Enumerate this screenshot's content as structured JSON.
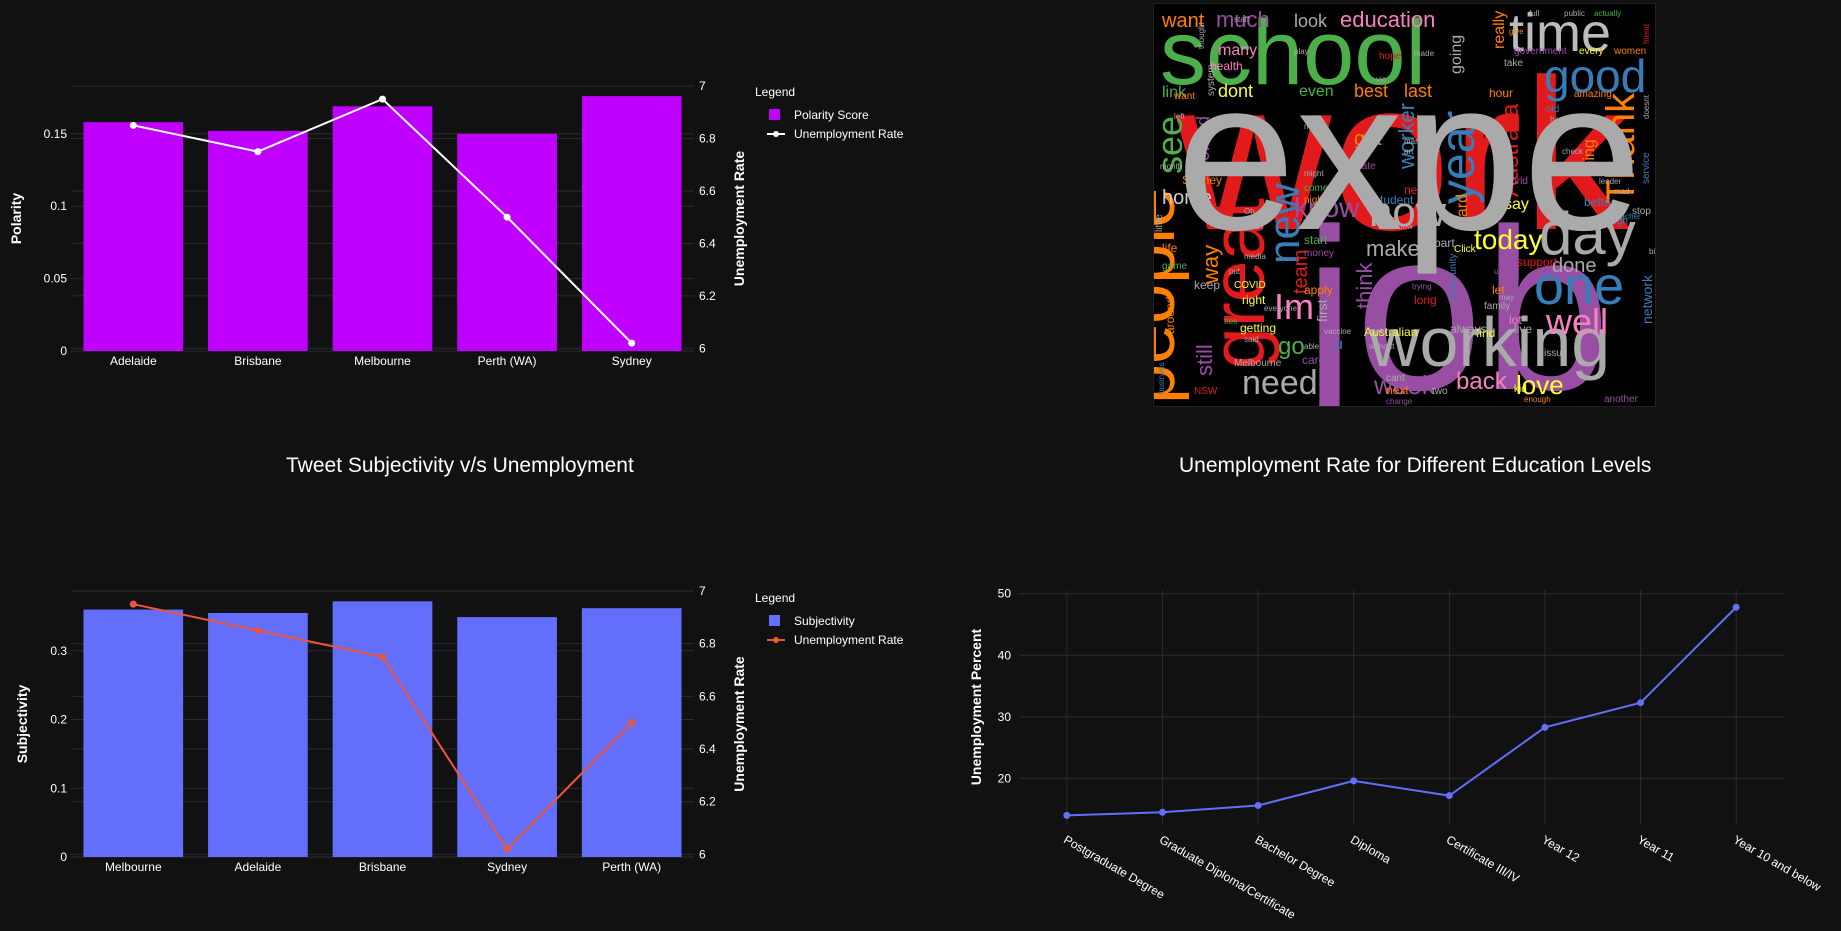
{
  "colors": {
    "background": "#111111",
    "polarity_bar": "#bf00ff",
    "polarity_line": "#ffffff",
    "subjectivity_bar": "#636efa",
    "subjectivity_line": "#ef553b",
    "education_line": "#636efa",
    "grid": "#2a2a33"
  },
  "chart_data": [
    {
      "type": "bar",
      "title": "",
      "categories": [
        "Adelaide",
        "Brisbane",
        "Melbourne",
        "Perth (WA)",
        "Sydney"
      ],
      "series": [
        {
          "name": "Polarity Score",
          "type": "bar",
          "axis": "left",
          "values": [
            0.158,
            0.152,
            0.169,
            0.15,
            0.176
          ]
        },
        {
          "name": "Unemployment Rate",
          "type": "line",
          "axis": "right",
          "values": [
            6.85,
            6.75,
            6.95,
            6.5,
            6.02
          ]
        }
      ],
      "ylabel": "Polarity",
      "y2label": "Unemployment Rate",
      "ylim": [
        0,
        0.183
      ],
      "y2lim": [
        5.99,
        7.0
      ],
      "yticks": [
        "0",
        "0.05",
        "0.1",
        "0.15"
      ],
      "y2ticks": [
        "6",
        "6.2",
        "6.4",
        "6.6",
        "6.8",
        "7"
      ],
      "legend_title": "Legend",
      "legend_position": "top-right"
    },
    {
      "type": "bar",
      "title": "Tweet Subjectivity v/s Unemployment",
      "categories": [
        "Melbourne",
        "Adelaide",
        "Brisbane",
        "Sydney",
        "Perth (WA)"
      ],
      "series": [
        {
          "name": "Subjectivity",
          "type": "bar",
          "axis": "left",
          "values": [
            0.36,
            0.355,
            0.372,
            0.349,
            0.362
          ]
        },
        {
          "name": "Unemployment Rate",
          "type": "line",
          "axis": "right",
          "values": [
            6.95,
            6.85,
            6.75,
            6.02,
            6.5
          ]
        }
      ],
      "ylabel": "Subjectivity",
      "y2label": "Unemployment Rate",
      "ylim": [
        0,
        0.387
      ],
      "y2lim": [
        5.99,
        7.0
      ],
      "yticks": [
        "0",
        "0.1",
        "0.2",
        "0.3"
      ],
      "y2ticks": [
        "6",
        "6.2",
        "6.4",
        "6.6",
        "6.8",
        "7"
      ],
      "legend_title": "Legend",
      "legend_position": "top-right"
    },
    {
      "type": "line",
      "title": "Unemployment Rate for Different Education Levels",
      "categories": [
        "Postgraduate Degree",
        "Graduate Diploma/Certificate",
        "Bachelor Degree",
        "Diploma",
        "Certificate III/IV",
        "Year 12",
        "Year 11",
        "Year 10 and below"
      ],
      "series": [
        {
          "name": "",
          "values": [
            14.0,
            14.5,
            15.6,
            19.6,
            17.2,
            28.3,
            32.3,
            47.8
          ]
        }
      ],
      "xlabel": "",
      "ylabel": "Unemployment Percent",
      "ylim": [
        12.6,
        50.6
      ],
      "yticks": [
        "20",
        "30",
        "40",
        "50"
      ],
      "grid": true
    }
  ],
  "wordcloud": {
    "words": [
      {
        "text": "work",
        "color": "#e31a1c"
      },
      {
        "text": "school",
        "color": "#4daf4a"
      },
      {
        "text": "job",
        "color": "#984ea3"
      },
      {
        "text": "time",
        "color": "#bbbbbb"
      },
      {
        "text": "people",
        "color": "#ff7f00"
      },
      {
        "text": "working",
        "color": "#aaaaaa"
      },
      {
        "text": "great",
        "color": "#e31a1c"
      },
      {
        "text": "day",
        "color": "#aaaaaa"
      },
      {
        "text": "one",
        "color": "#377eb8"
      },
      {
        "text": "good",
        "color": "#377eb8"
      },
      {
        "text": "year",
        "color": "#377eb8"
      },
      {
        "text": "Thank",
        "color": "#ff7f00"
      },
      {
        "text": "new",
        "color": "#377eb8"
      },
      {
        "text": "now",
        "color": "#aaaaaa"
      },
      {
        "text": "well",
        "color": "#f781bf"
      },
      {
        "text": "need",
        "color": "#aaaaaa"
      },
      {
        "text": "see",
        "color": "#4daf4a"
      },
      {
        "text": "know",
        "color": "#984ea3"
      },
      {
        "text": "Im",
        "color": "#f781bf"
      },
      {
        "text": "education",
        "color": "#f781bf"
      },
      {
        "text": "want",
        "color": "#ff7f00"
      },
      {
        "text": "much",
        "color": "#984ea3"
      },
      {
        "text": "today",
        "color": "#ffff33"
      },
      {
        "text": "back",
        "color": "#f781bf"
      },
      {
        "text": "love",
        "color": "#ffff33"
      },
      {
        "text": "week",
        "color": "#984ea3"
      },
      {
        "text": "home",
        "color": "#cccccc"
      },
      {
        "text": "still",
        "color": "#984ea3"
      },
      {
        "text": "Australia",
        "color": "#e31a1c"
      },
      {
        "text": "make",
        "color": "#aaaaaa"
      },
      {
        "text": "go",
        "color": "#4daf4a"
      },
      {
        "text": "many",
        "color": "#f781bf"
      },
      {
        "text": "look",
        "color": "#aaaaaa"
      },
      {
        "text": "done",
        "color": "#aaaaaa"
      },
      {
        "text": "way",
        "color": "#ff7f00"
      },
      {
        "text": "think",
        "color": "#984ea3"
      },
      {
        "text": "team",
        "color": "#e31a1c"
      },
      {
        "text": "worker",
        "color": "#377eb8"
      },
      {
        "text": "dont",
        "color": "#ffff33"
      },
      {
        "text": "link",
        "color": "#4daf4a"
      },
      {
        "text": "got",
        "color": "#ff7f00"
      },
      {
        "text": "best",
        "color": "#ff7f00"
      },
      {
        "text": "even",
        "color": "#4daf4a"
      },
      {
        "text": "last",
        "color": "#ff7f00"
      },
      {
        "text": "say",
        "color": "#ffff33"
      },
      {
        "text": "hard",
        "color": "#ff7f00"
      },
      {
        "text": "worked",
        "color": "#984ea3"
      },
      {
        "text": "going",
        "color": "#aaaaaa"
      },
      {
        "text": "really",
        "color": "#ff7f00"
      },
      {
        "text": "network",
        "color": "#377eb8"
      },
      {
        "text": "thing",
        "color": "#ff7f00"
      },
      {
        "text": "first",
        "color": "#aaaaaa"
      },
      {
        "text": "health",
        "color": "#f781bf"
      },
      {
        "text": "never",
        "color": "#e31a1c"
      },
      {
        "text": "student",
        "color": "#377eb8"
      },
      {
        "text": "Australian",
        "color": "#ffff33"
      },
      {
        "text": "around",
        "color": "#ff7f00"
      },
      {
        "text": "lot",
        "color": "#f781bf"
      },
      {
        "text": "life",
        "color": "#ff7f00"
      },
      {
        "text": "better",
        "color": "#377eb8"
      },
      {
        "text": "support",
        "color": "#e31a1c"
      },
      {
        "text": "find",
        "color": "#ffff33"
      },
      {
        "text": "right",
        "color": "#ffff33"
      },
      {
        "text": "apply",
        "color": "#ff7f00"
      },
      {
        "text": "getting",
        "color": "#ffff33"
      },
      {
        "text": "care",
        "color": "#984ea3"
      },
      {
        "text": "feel",
        "color": "#aaaaaa"
      },
      {
        "text": "let",
        "color": "#ff7f00"
      },
      {
        "text": "long",
        "color": "#e31a1c"
      },
      {
        "text": "community",
        "color": "#377eb8"
      },
      {
        "text": "Sydney",
        "color": "#ff7f00"
      },
      {
        "text": "system",
        "color": "#aaaaaa"
      },
      {
        "text": "government",
        "color": "#984ea3"
      },
      {
        "text": "every",
        "color": "#ffff33"
      },
      {
        "text": "women",
        "color": "#ff7f00"
      },
      {
        "text": "hope",
        "color": "#e31a1c"
      },
      {
        "text": "start",
        "color": "#4daf4a"
      },
      {
        "text": "money",
        "color": "#984ea3"
      },
      {
        "text": "night",
        "color": "#ff7f00"
      },
      {
        "text": "come",
        "color": "#4daf4a"
      },
      {
        "text": "part",
        "color": "#aaaaaa"
      },
      {
        "text": "always",
        "color": "#aaaaaa"
      },
      {
        "text": "live",
        "color": "#aaaaaa"
      },
      {
        "text": "stop",
        "color": "#aaaaaa"
      },
      {
        "text": "kid",
        "color": "#ffff33"
      },
      {
        "text": "two",
        "color": "#aaaaaa"
      },
      {
        "text": "cant",
        "color": "#aaaaaa"
      },
      {
        "text": "next",
        "color": "#ff7f00"
      },
      {
        "text": "change",
        "color": "#984ea3"
      },
      {
        "text": "enough",
        "color": "#ff7f00"
      },
      {
        "text": "another",
        "color": "#984ea3"
      },
      {
        "text": "keep",
        "color": "#aaaaaa"
      },
      {
        "text": "COVID",
        "color": "#ffff33"
      },
      {
        "text": "game",
        "color": "#4daf4a"
      },
      {
        "text": "state",
        "color": "#984ea3"
      },
      {
        "text": "bio",
        "color": "#984ea3"
      },
      {
        "text": "hour",
        "color": "#ff7f00"
      },
      {
        "text": "amazing",
        "color": "#ff7f00"
      },
      {
        "text": "old",
        "color": "#377eb8"
      },
      {
        "text": "Click",
        "color": "#ffff33"
      },
      {
        "text": "family",
        "color": "#aaaaaa"
      },
      {
        "text": "issue",
        "color": "#aaaaaa"
      },
      {
        "text": "Melbourne",
        "color": "#aaaaaa"
      },
      {
        "text": "business",
        "color": "#377eb8"
      },
      {
        "text": "NSW",
        "color": "#e31a1c"
      },
      {
        "text": "actually",
        "color": "#4daf4a"
      },
      {
        "text": "public",
        "color": "#aaaaaa"
      },
      {
        "text": "full",
        "color": "#aaaaaa"
      },
      {
        "text": "friend",
        "color": "#e31a1c"
      },
      {
        "text": "take",
        "color": "#aaaaaa"
      },
      {
        "text": "give",
        "color": "#ff7f00"
      },
      {
        "text": "play",
        "color": "#aaaaaa"
      },
      {
        "text": "might",
        "color": "#aaaaaa"
      },
      {
        "text": "must",
        "color": "#aaaaaa"
      },
      {
        "text": "trying",
        "color": "#984ea3"
      },
      {
        "text": "used",
        "color": "#984ea3"
      },
      {
        "text": "may",
        "color": "#aaaaaa"
      },
      {
        "text": "said",
        "color": "#aaaaaa"
      },
      {
        "text": "put",
        "color": "#aaaaaa"
      },
      {
        "text": "left",
        "color": "#aaaaaa"
      },
      {
        "text": "high",
        "color": "#377eb8"
      },
      {
        "text": "service",
        "color": "#377eb8"
      },
      {
        "text": "teacher",
        "color": "#377eb8"
      },
      {
        "text": "big",
        "color": "#aaaaaa"
      },
      {
        "text": "staff",
        "color": "#aaaaaa"
      },
      {
        "text": "made",
        "color": "#aaaaaa"
      },
      {
        "text": "want",
        "color": "#ff7f00"
      },
      {
        "text": "without",
        "color": "#aaaaaa"
      },
      {
        "text": "making",
        "color": "#aaaaaa"
      },
      {
        "text": "everyone",
        "color": "#aaaaaa"
      },
      {
        "text": "able",
        "color": "#aaaaaa"
      },
      {
        "text": "month",
        "color": "#aaaaaa"
      },
      {
        "text": "media",
        "color": "#aaaaaa"
      },
      {
        "text": "u",
        "color": "#377eb8"
      },
      {
        "text": "Ive",
        "color": "#e31a1c"
      },
      {
        "text": "leader",
        "color": "#aaaaaa"
      },
      {
        "text": "world",
        "color": "#984ea3"
      },
      {
        "text": "vic",
        "color": "#aaaaaa"
      },
      {
        "text": "Oh",
        "color": "#aaaaaa"
      },
      {
        "text": "little",
        "color": "#aaaaaa"
      },
      {
        "text": "free",
        "color": "#4daf4a"
      },
      {
        "text": "yeah",
        "color": "#aaaaaa"
      },
      {
        "text": "happy",
        "color": "#aaaaaa"
      },
      {
        "text": "check",
        "color": "#aaaaaa"
      },
      {
        "text": "art",
        "color": "#aaaaaa"
      },
      {
        "text": "man",
        "color": "#aaaaaa"
      },
      {
        "text": "mad",
        "color": "#aaaaaa"
      },
      {
        "text": "thought",
        "color": "#aaaaaa"
      },
      {
        "text": "vaccine",
        "color": "#aaaaaa"
      },
      {
        "text": "show",
        "color": "#aaaaaa"
      },
      {
        "text": "doesnt",
        "color": "#aaaaaa"
      },
      {
        "text": "experience",
        "color": "#aaaaaa"
      }
    ]
  }
}
